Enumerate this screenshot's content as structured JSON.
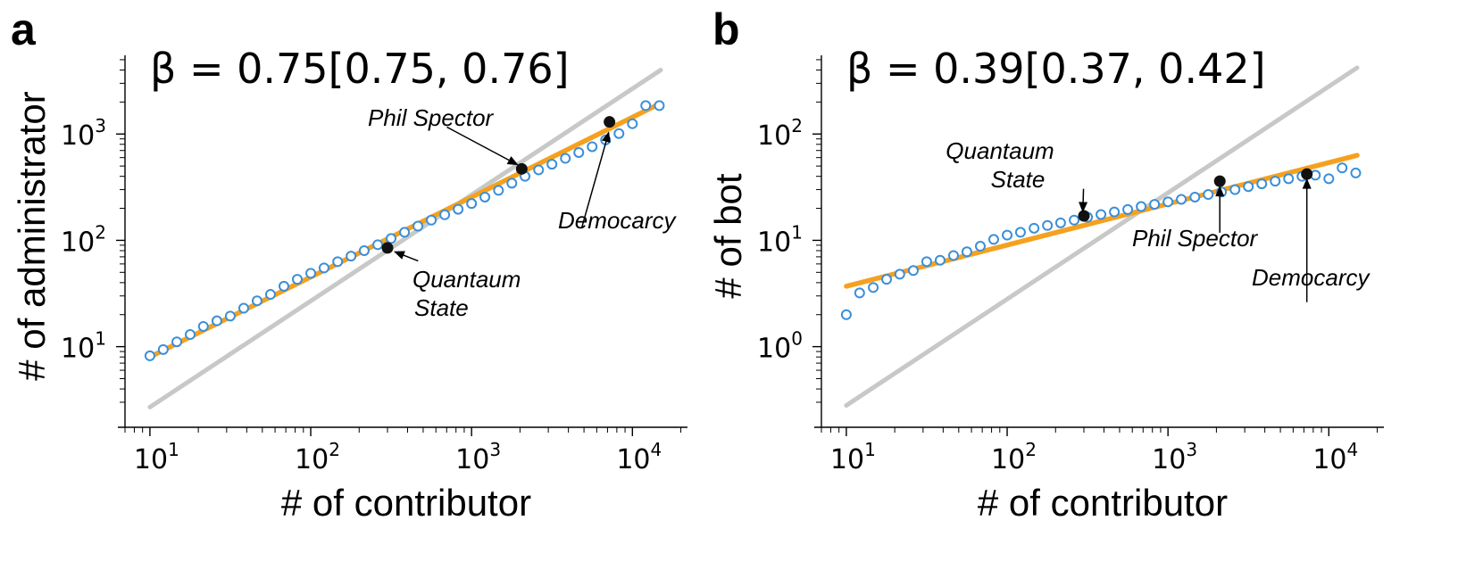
{
  "chart_data": [
    {
      "panel_label": "a",
      "type": "scatter",
      "annotation_text": "β = 0.75[0.75, 0.76]",
      "xlabel": "# of contributor",
      "ylabel": "# of administrator",
      "x_scale": "log",
      "y_scale": "log",
      "xlim": [
        7,
        22000
      ],
      "ylim": [
        2.2,
        5500
      ],
      "x_ticks": [
        {
          "value": 10,
          "base": "10",
          "exp": "1"
        },
        {
          "value": 100,
          "base": "10",
          "exp": "2"
        },
        {
          "value": 1000,
          "base": "10",
          "exp": "3"
        },
        {
          "value": 10000,
          "base": "10",
          "exp": "4"
        }
      ],
      "y_ticks": [
        {
          "value": 10,
          "base": "10",
          "exp": "1"
        },
        {
          "value": 100,
          "base": "10",
          "exp": "2"
        },
        {
          "value": 1000,
          "base": "10",
          "exp": "3"
        }
      ],
      "grid": false,
      "colors": {
        "points": "#3a8fd9",
        "fit": "#f5a11f",
        "reference": "#c6c9c6",
        "highlight": "#111111"
      },
      "series": [
        {
          "kind": "binned-points",
          "x": [
            10,
            12.1,
            14.7,
            17.8,
            21.5,
            26.1,
            31.6,
            38.3,
            46.4,
            56.2,
            68.1,
            82.5,
            100,
            121,
            147,
            178,
            215,
            261,
            316,
            383,
            464,
            562,
            681,
            825,
            1000,
            1210,
            1470,
            1780,
            2150,
            2610,
            3160,
            3830,
            4640,
            5620,
            6810,
            8250,
            10000,
            12100,
            14700
          ],
          "y": [
            8.2,
            9.4,
            11.1,
            13.0,
            15.5,
            17.5,
            19.4,
            23.0,
            27.0,
            31.0,
            37.0,
            43.0,
            49.0,
            55.0,
            63.0,
            71.0,
            80.0,
            91.0,
            104.0,
            119.0,
            136.0,
            155.0,
            174.0,
            196.0,
            222.0,
            255.0,
            295.0,
            345.0,
            400.0,
            460.0,
            520.0,
            590.0,
            670.0,
            760.0,
            880.0,
            1010.0,
            1250.0,
            1850.0,
            1850.0
          ]
        },
        {
          "kind": "fit",
          "x": [
            10,
            15000
          ],
          "y": [
            8.0,
            1950
          ]
        },
        {
          "kind": "reference",
          "x": [
            10,
            15000
          ],
          "y": [
            2.7,
            4000
          ]
        }
      ],
      "highlights": [
        {
          "label": "Phil Spector",
          "x": 2050,
          "y": 470,
          "text_x": 600,
          "text_y": 1320,
          "arrow_to_x": 2000,
          "arrow_to_y": 500
        },
        {
          "label": "Democarcy",
          "x": 7200,
          "y": 1300,
          "text_x": 4600,
          "text_y": 100,
          "arrow_to_x": 7200,
          "arrow_to_y": 1100
        },
        {
          "label_lines": [
            "Quantaum",
            "State"
          ],
          "x": 300,
          "y": 85,
          "text_x": 550,
          "text_y": 58,
          "arrow_to_x": 320,
          "arrow_to_y": 80
        }
      ]
    },
    {
      "panel_label": "b",
      "type": "scatter",
      "annotation_text": "β = 0.39[0.37, 0.42]",
      "xlabel": "# of contributor",
      "ylabel": "# of bot",
      "x_scale": "log",
      "y_scale": "log",
      "xlim": [
        7,
        22000
      ],
      "ylim": [
        0.22,
        550
      ],
      "x_ticks": [
        {
          "value": 10,
          "base": "10",
          "exp": "1"
        },
        {
          "value": 100,
          "base": "10",
          "exp": "2"
        },
        {
          "value": 1000,
          "base": "10",
          "exp": "3"
        },
        {
          "value": 10000,
          "base": "10",
          "exp": "4"
        }
      ],
      "y_ticks": [
        {
          "value": 1,
          "base": "10",
          "exp": "0"
        },
        {
          "value": 10,
          "base": "10",
          "exp": "1"
        },
        {
          "value": 100,
          "base": "10",
          "exp": "2"
        }
      ],
      "grid": false,
      "colors": {
        "points": "#3a8fd9",
        "fit": "#f5a11f",
        "reference": "#c6c9c6",
        "highlight": "#111111"
      },
      "series": [
        {
          "kind": "binned-points",
          "x": [
            10,
            12.1,
            14.7,
            17.8,
            21.5,
            26.1,
            31.6,
            38.3,
            46.4,
            56.2,
            68.1,
            82.5,
            100,
            121,
            147,
            178,
            215,
            261,
            316,
            383,
            464,
            562,
            681,
            825,
            1000,
            1210,
            1470,
            1780,
            2150,
            2610,
            3160,
            3830,
            4640,
            5620,
            6810,
            8250,
            10000,
            12100,
            14700
          ],
          "y": [
            2.0,
            3.2,
            3.6,
            4.3,
            4.8,
            5.2,
            6.3,
            6.5,
            7.2,
            7.8,
            8.8,
            10.2,
            11.2,
            11.9,
            13.0,
            13.8,
            14.6,
            15.5,
            16.5,
            17.5,
            18.5,
            19.5,
            20.8,
            21.8,
            23.0,
            24.3,
            25.5,
            27.0,
            28.5,
            30.0,
            32.0,
            34.0,
            36.0,
            38.0,
            40.0,
            41.0,
            38.0,
            48.0,
            43.0
          ]
        },
        {
          "kind": "fit",
          "x": [
            10,
            15000
          ],
          "y": [
            3.7,
            63.0
          ]
        },
        {
          "kind": "reference",
          "x": [
            10,
            15000
          ],
          "y": [
            0.28,
            420
          ]
        }
      ],
      "highlights": [
        {
          "label_lines": [
            "Quantaum",
            "State"
          ],
          "x": 300,
          "y": 17,
          "text_x": 300,
          "text_y": 40,
          "arrow_to_x": 295,
          "arrow_to_y": 17.5
        },
        {
          "label": "Phil Spector",
          "x": 2100,
          "y": 36,
          "text_x": 2100,
          "text_y": 9,
          "arrow_to_x": 2100,
          "arrow_to_y": 34
        },
        {
          "label": "Democarcy",
          "x": 7300,
          "y": 42,
          "text_x": 7300,
          "text_y": 2.0,
          "arrow_to_x": 7300,
          "arrow_to_y": 40
        }
      ]
    }
  ]
}
